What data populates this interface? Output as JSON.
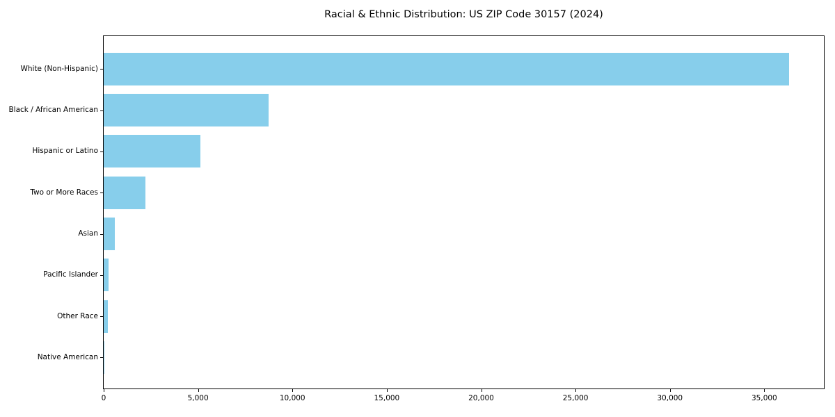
{
  "chart_data": {
    "type": "bar",
    "orientation": "horizontal",
    "title": "Racial & Ethnic Distribution: US ZIP Code 30157 (2024)",
    "categories": [
      "White (Non-Hispanic)",
      "Black / African American",
      "Hispanic or Latino",
      "Two or More Races",
      "Asian",
      "Pacific Islander",
      "Other Race",
      "Native American"
    ],
    "values": [
      36300,
      8730,
      5110,
      2220,
      580,
      250,
      210,
      35
    ],
    "xlabel": "",
    "ylabel": "",
    "xlim": [
      0,
      38230
    ],
    "x_tick_values": [
      0,
      5000,
      10000,
      15000,
      20000,
      25000,
      30000,
      35000
    ],
    "x_tick_labels": [
      "0",
      "5,000",
      "10,000",
      "15,000",
      "20,000",
      "25,000",
      "30,000",
      "35,000"
    ],
    "bar_color": "#87CEEB",
    "background_color": "#ffffff",
    "grid": false,
    "legend": false
  }
}
